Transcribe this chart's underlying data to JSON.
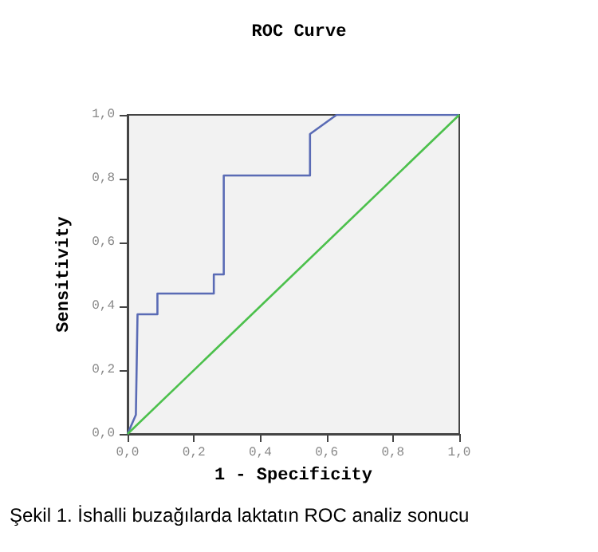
{
  "chart_data": {
    "type": "line",
    "title": "ROC Curve",
    "xlabel": "1 - Specificity",
    "ylabel": "Sensitivity",
    "series": [
      {
        "color": "#5a6bb5",
        "x": [
          0,
          0.025,
          0.03,
          0.09,
          0.09,
          0.26,
          0.26,
          0.29,
          0.29,
          0.55,
          0.55,
          0.63,
          1.0
        ],
        "values": [
          0,
          0.06,
          0.375,
          0.375,
          0.44,
          0.44,
          0.5,
          0.5,
          0.81,
          0.81,
          0.94,
          1.0,
          1.0
        ]
      },
      {
        "color": "#4cc04c",
        "x": [
          0,
          1
        ],
        "values": [
          0,
          1
        ]
      }
    ],
    "xlim": [
      0,
      1
    ],
    "ylim": [
      0,
      1
    ],
    "xticks": [
      {
        "value": 0,
        "label": "0,0"
      },
      {
        "value": 0.2,
        "label": "0,2"
      },
      {
        "value": 0.4,
        "label": "0,4"
      },
      {
        "value": 0.6,
        "label": "0,6"
      },
      {
        "value": 0.8,
        "label": "0,8"
      },
      {
        "value": 1,
        "label": "1,0"
      }
    ],
    "yticks": [
      {
        "value": 0,
        "label": "0,0"
      },
      {
        "value": 0.2,
        "label": "0,2"
      },
      {
        "value": 0.4,
        "label": "0,4"
      },
      {
        "value": 0.6,
        "label": "0,6"
      },
      {
        "value": 0.8,
        "label": "0,8"
      },
      {
        "value": 1,
        "label": "1,0"
      }
    ],
    "marker": "none",
    "grid": false,
    "annotations": [
      "Şekil 1. İshalli buzağılarda laktatın ROC analiz sonucu"
    ]
  }
}
